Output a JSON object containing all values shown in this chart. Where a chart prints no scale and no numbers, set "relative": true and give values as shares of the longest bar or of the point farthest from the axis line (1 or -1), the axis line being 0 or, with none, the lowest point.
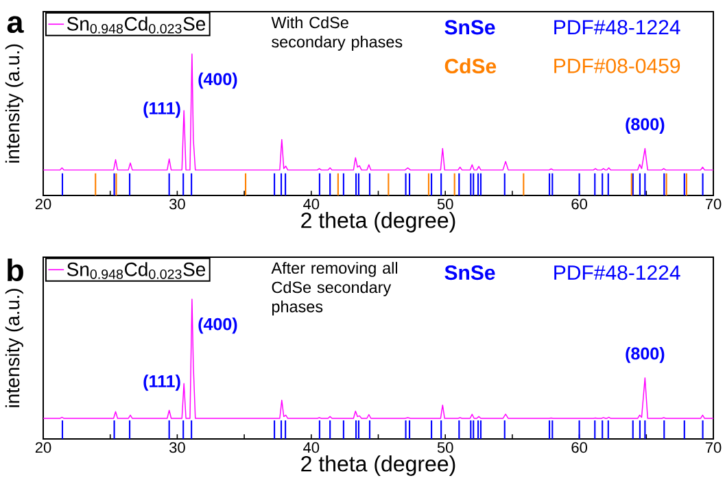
{
  "chart_data": [
    {
      "type": "line",
      "title": "a",
      "xlabel": "2 theta (degree)",
      "ylabel": "intensity (a.u.)",
      "relative": true,
      "legend": "top left",
      "xlim": [
        20,
        70
      ],
      "xticks": [
        20,
        {
          "value": 25,
          "label": null
        },
        30,
        {
          "value": 35,
          "label": null
        },
        40,
        {
          "value": 45,
          "label": null
        },
        50,
        {
          "value": 55,
          "label": null
        },
        60,
        {
          "value": 65,
          "label": null
        },
        70
      ],
      "series": [
        {
          "name": "Sn$_{0.948}$Cd$_{0.023}$Se",
          "color": "#ff00ff",
          "x": [
            20,
            21.25,
            21.4,
            21.55,
            25.25,
            25.4,
            25.55,
            26.35,
            26.5,
            26.65,
            29.25,
            29.4,
            29.55,
            30.35,
            30.5,
            30.65,
            30.95,
            31.1,
            31.2,
            31.35,
            37.65,
            37.8,
            37.95,
            38.1,
            38.25,
            40.45,
            40.6,
            40.75,
            41.25,
            41.4,
            41.55,
            43.15,
            43.3,
            43.45,
            43.6,
            43.75,
            44.15,
            44.3,
            44.45,
            47.0,
            47.2,
            47.4,
            49.65,
            49.8,
            49.95,
            50.95,
            51.1,
            51.25,
            51.85,
            52.0,
            52.15,
            52.35,
            52.5,
            52.65,
            54.3,
            54.5,
            54.7,
            57.75,
            57.9,
            58.05,
            61.05,
            61.2,
            61.35,
            61.65,
            61.8,
            61.95,
            62.05,
            62.2,
            62.35,
            64.35,
            64.5,
            64.65,
            64.9,
            65.1,
            66.15,
            66.3,
            66.45,
            69.05,
            69.2,
            69.35,
            70
          ],
          "values": [
            0.18,
            0.18,
            0.195,
            0.18,
            0.18,
            0.253,
            0.18,
            0.18,
            0.23,
            0.18,
            0.18,
            0.258,
            0.18,
            0.18,
            0.6,
            0.18,
            0.18,
            1,
            0.4,
            0.18,
            0.18,
            0.396,
            0.19,
            0.207,
            0.18,
            0.18,
            0.19,
            0.18,
            0.18,
            0.195,
            0.18,
            0.18,
            0.267,
            0.2,
            0.21,
            0.18,
            0.18,
            0.217,
            0.18,
            0.18,
            0.195,
            0.18,
            0.18,
            0.332,
            0.18,
            0.18,
            0.2,
            0.18,
            0.18,
            0.217,
            0.18,
            0.18,
            0.205,
            0.18,
            0.18,
            0.24,
            0.18,
            0.18,
            0.188,
            0.18,
            0.18,
            0.19,
            0.18,
            0.18,
            0.19,
            0.18,
            0.18,
            0.195,
            0.18,
            0.18,
            0.22,
            0.19,
            0.332,
            0.18,
            0.18,
            0.19,
            0.18,
            0.18,
            0.2,
            0.18,
            0.18
          ]
        },
        {
          "name": "SnSe",
          "type": "bar",
          "color": "#0000ff",
          "x": [
            21.43,
            25.3,
            26.45,
            29.4,
            30.45,
            31.06,
            37.25,
            37.76,
            38.07,
            40.62,
            41.4,
            42.41,
            43.34,
            43.54,
            44.36,
            47.05,
            47.33,
            48.97,
            49.69,
            51.03,
            51.9,
            52.1,
            52.45,
            52.65,
            54.43,
            57.77,
            57.99,
            60.0,
            61.16,
            61.72,
            62.16,
            64.0,
            64.52,
            64.9,
            66.33,
            67.84,
            69.21
          ],
          "values": [
            0.157,
            0.157,
            0.157,
            0.157,
            0.157,
            0.157,
            0.157,
            0.157,
            0.157,
            0.157,
            0.157,
            0.157,
            0.157,
            0.157,
            0.157,
            0.157,
            0.157,
            0.157,
            0.157,
            0.157,
            0.157,
            0.157,
            0.157,
            0.157,
            0.157,
            0.157,
            0.157,
            0.157,
            0.157,
            0.157,
            0.157,
            0.157,
            0.157,
            0.157,
            0.157,
            0.157,
            0.157
          ]
        },
        {
          "name": "CdSe",
          "type": "bar",
          "color": "#ff8000",
          "x": [
            23.9,
            25.45,
            35.1,
            42.0,
            45.76,
            48.76,
            50.69,
            55.84,
            63.9,
            66.5,
            68.0
          ],
          "values": [
            0.157,
            0.157,
            0.157,
            0.157,
            0.157,
            0.157,
            0.157,
            0.157,
            0.157,
            0.157,
            0.157
          ]
        }
      ],
      "annotations": [
        "With CdSe secondary phases",
        "PDF#48-1224",
        "PDF#08-0459",
        {
          "text": "(111)",
          "x": 30.5,
          "y": 0.6
        },
        {
          "text": "(400)",
          "x": 31.1,
          "y": 1
        },
        {
          "text": "(800)",
          "x": 64.9,
          "y": 0.332
        }
      ]
    },
    {
      "type": "line",
      "title": "b",
      "xlabel": "2 theta (degree)",
      "ylabel": "intensity (a.u.)",
      "relative": true,
      "legend": "top left",
      "xlim": [
        20,
        70
      ],
      "xticks": [
        20,
        {
          "value": 25,
          "label": null
        },
        30,
        {
          "value": 35,
          "label": null
        },
        40,
        {
          "value": 45,
          "label": null
        },
        50,
        {
          "value": 55,
          "label": null
        },
        60,
        {
          "value": 65,
          "label": null
        },
        70
      ],
      "series": [
        {
          "name": "Sn$_{0.948}$Cd$_{0.023}$Se",
          "color": "#ff00ff",
          "x": [
            20,
            21.25,
            21.4,
            21.55,
            25.25,
            25.4,
            25.55,
            26.35,
            26.5,
            26.65,
            29.25,
            29.4,
            29.55,
            30.35,
            30.5,
            30.65,
            30.95,
            31.1,
            31.2,
            31.35,
            37.65,
            37.8,
            37.95,
            38.1,
            38.25,
            40.45,
            40.6,
            40.75,
            41.25,
            41.4,
            41.55,
            43.15,
            43.3,
            43.45,
            43.6,
            43.75,
            44.15,
            44.3,
            44.45,
            47.0,
            47.2,
            47.4,
            49.65,
            49.8,
            49.95,
            50.95,
            51.1,
            51.25,
            51.85,
            52.0,
            52.15,
            52.35,
            52.5,
            52.65,
            54.3,
            54.5,
            54.7,
            57.75,
            57.9,
            58.05,
            61.05,
            61.2,
            61.35,
            61.65,
            61.8,
            61.95,
            62.05,
            62.2,
            62.35,
            64.35,
            64.5,
            64.65,
            64.9,
            65.1,
            66.15,
            66.3,
            66.45,
            69.05,
            69.2,
            69.35,
            70
          ],
          "values": [
            0.147,
            0.147,
            0.155,
            0.147,
            0.147,
            0.195,
            0.147,
            0.147,
            0.17,
            0.147,
            0.147,
            0.205,
            0.147,
            0.147,
            0.396,
            0.147,
            0.147,
            1,
            0.528,
            0.147,
            0.147,
            0.277,
            0.16,
            0.17,
            0.147,
            0.147,
            0.152,
            0.147,
            0.147,
            0.16,
            0.147,
            0.147,
            0.199,
            0.16,
            0.165,
            0.147,
            0.147,
            0.174,
            0.147,
            0.147,
            0.152,
            0.147,
            0.147,
            0.242,
            0.147,
            0.147,
            0.152,
            0.147,
            0.147,
            0.176,
            0.147,
            0.147,
            0.16,
            0.147,
            0.147,
            0.177,
            0.147,
            0.147,
            0.15,
            0.147,
            0.147,
            0.15,
            0.147,
            0.147,
            0.153,
            0.147,
            0.147,
            0.155,
            0.147,
            0.147,
            0.17,
            0.155,
            0.437,
            0.147,
            0.147,
            0.152,
            0.147,
            0.147,
            0.17,
            0.147,
            0.147
          ]
        },
        {
          "name": "SnSe",
          "type": "bar",
          "color": "#0000ff",
          "x": [
            21.43,
            25.3,
            26.45,
            29.4,
            30.45,
            31.06,
            37.25,
            37.76,
            38.07,
            40.62,
            41.4,
            42.41,
            43.34,
            43.54,
            44.36,
            47.05,
            47.33,
            48.97,
            49.69,
            51.03,
            51.9,
            52.1,
            52.45,
            52.65,
            54.43,
            57.77,
            57.99,
            60.0,
            61.16,
            61.72,
            62.16,
            64.0,
            64.52,
            64.9,
            66.33,
            67.84,
            69.21
          ],
          "values": [
            0.132,
            0.132,
            0.132,
            0.132,
            0.132,
            0.132,
            0.132,
            0.132,
            0.132,
            0.132,
            0.132,
            0.132,
            0.132,
            0.132,
            0.132,
            0.132,
            0.132,
            0.132,
            0.132,
            0.132,
            0.132,
            0.132,
            0.132,
            0.132,
            0.132,
            0.132,
            0.132,
            0.132,
            0.132,
            0.132,
            0.132,
            0.132,
            0.132,
            0.132,
            0.132,
            0.132,
            0.132
          ]
        }
      ],
      "annotations": [
        "After removing all CdSe secondary phases",
        "PDF#48-1224",
        {
          "text": "(111)",
          "x": 30.5,
          "y": 0.396
        },
        {
          "text": "(400)",
          "x": 31.1,
          "y": 1
        },
        {
          "text": "(800)",
          "x": 64.9,
          "y": 0.437
        }
      ]
    }
  ]
}
